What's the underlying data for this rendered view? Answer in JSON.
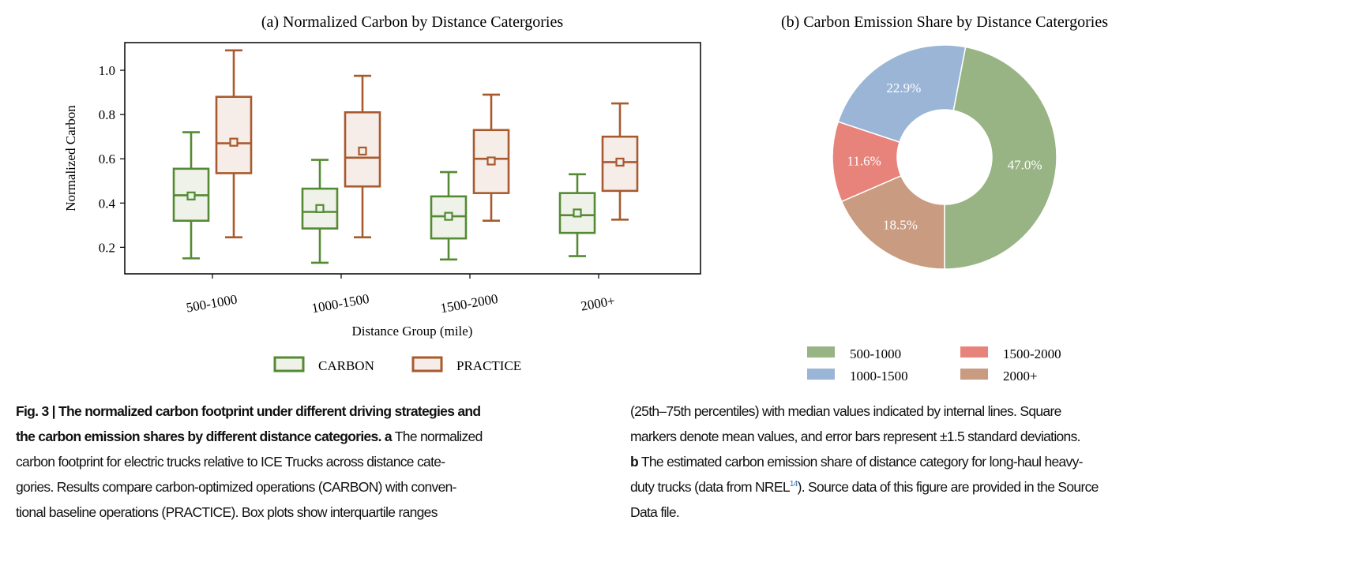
{
  "chart_data": [
    {
      "type": "box",
      "title": "(a) Normalized Carbon by Distance Catergories",
      "xlabel": "Distance Group (mile)",
      "ylabel": "Normalized Carbon",
      "ylim": [
        0.08,
        1.125
      ],
      "yticks": [
        0.2,
        0.4,
        0.6,
        0.8,
        1.0
      ],
      "ytick_labels": [
        "0.2",
        "0.4",
        "0.6",
        "0.8",
        "1.0"
      ],
      "categories": [
        "500-1000",
        "1000-1500",
        "1500-2000",
        "2000+"
      ],
      "legend": {
        "placement": "bottom",
        "entries": [
          "CARBON",
          "PRACTICE"
        ]
      },
      "series": [
        {
          "name": "CARBON",
          "color": "#548a34",
          "fill": "#eef2e9",
          "whisker_low": [
            0.15,
            0.13,
            0.145,
            0.16
          ],
          "q1": [
            0.32,
            0.285,
            0.24,
            0.265
          ],
          "median": [
            0.435,
            0.36,
            0.34,
            0.345
          ],
          "mean": [
            0.432,
            0.375,
            0.34,
            0.355
          ],
          "q3": [
            0.555,
            0.465,
            0.43,
            0.445
          ],
          "whisker_high": [
            0.72,
            0.595,
            0.54,
            0.53
          ]
        },
        {
          "name": "PRACTICE",
          "color": "#a85a2e",
          "fill": "#f6ece8",
          "whisker_low": [
            0.245,
            0.245,
            0.32,
            0.325
          ],
          "q1": [
            0.535,
            0.475,
            0.445,
            0.455
          ],
          "median": [
            0.67,
            0.605,
            0.6,
            0.585
          ],
          "mean": [
            0.675,
            0.635,
            0.59,
            0.585
          ],
          "q3": [
            0.88,
            0.81,
            0.73,
            0.7
          ],
          "whisker_high": [
            1.09,
            0.975,
            0.89,
            0.85
          ]
        }
      ]
    },
    {
      "type": "pie",
      "title": "(b) Carbon Emission Share by Distance Catergories",
      "labels": [
        "500-1000",
        "1000-1500",
        "1500-2000",
        "2000+"
      ],
      "values": [
        47.0,
        22.9,
        11.6,
        18.5
      ],
      "value_labels": [
        "47.0%",
        "22.9%",
        "11.6%",
        "18.5%"
      ],
      "colors": [
        "#98b384",
        "#9bb5d6",
        "#e8837b",
        "#c99b80"
      ],
      "donut": true,
      "legend": {
        "placement": "bottom"
      }
    }
  ],
  "caption": {
    "left": [
      {
        "bold": "Fig. 3 | The normalized carbon footprint under different driving strategies and",
        "rest": ""
      },
      {
        "bold": "the carbon emission shares by different distance categories. a",
        "rest": " The normalized"
      },
      {
        "bold": "",
        "rest": "carbon footprint for electric trucks relative to ICE Trucks across distance cate-"
      },
      {
        "bold": "",
        "rest": "gories. Results compare carbon-optimized operations (CARBON) with conven-"
      },
      {
        "bold": "",
        "rest": "tional baseline operations (PRACTICE). Box plots show interquartile ranges"
      }
    ],
    "right": [
      {
        "bold": "",
        "rest": "(25th–75th percentiles) with median values indicated by internal lines. Square"
      },
      {
        "bold": "",
        "rest": "markers denote mean values, and error bars represent  ±1.5 standard deviations."
      },
      {
        "bold": "b",
        "rest": " The estimated carbon emission share of distance category for long-haul heavy-"
      },
      {
        "bold": "",
        "rest": "duty trucks (data from NREL",
        "sup": "14",
        "after": "). Source data of this figure are provided in the Source"
      },
      {
        "bold": "",
        "rest": "Data file."
      }
    ]
  }
}
